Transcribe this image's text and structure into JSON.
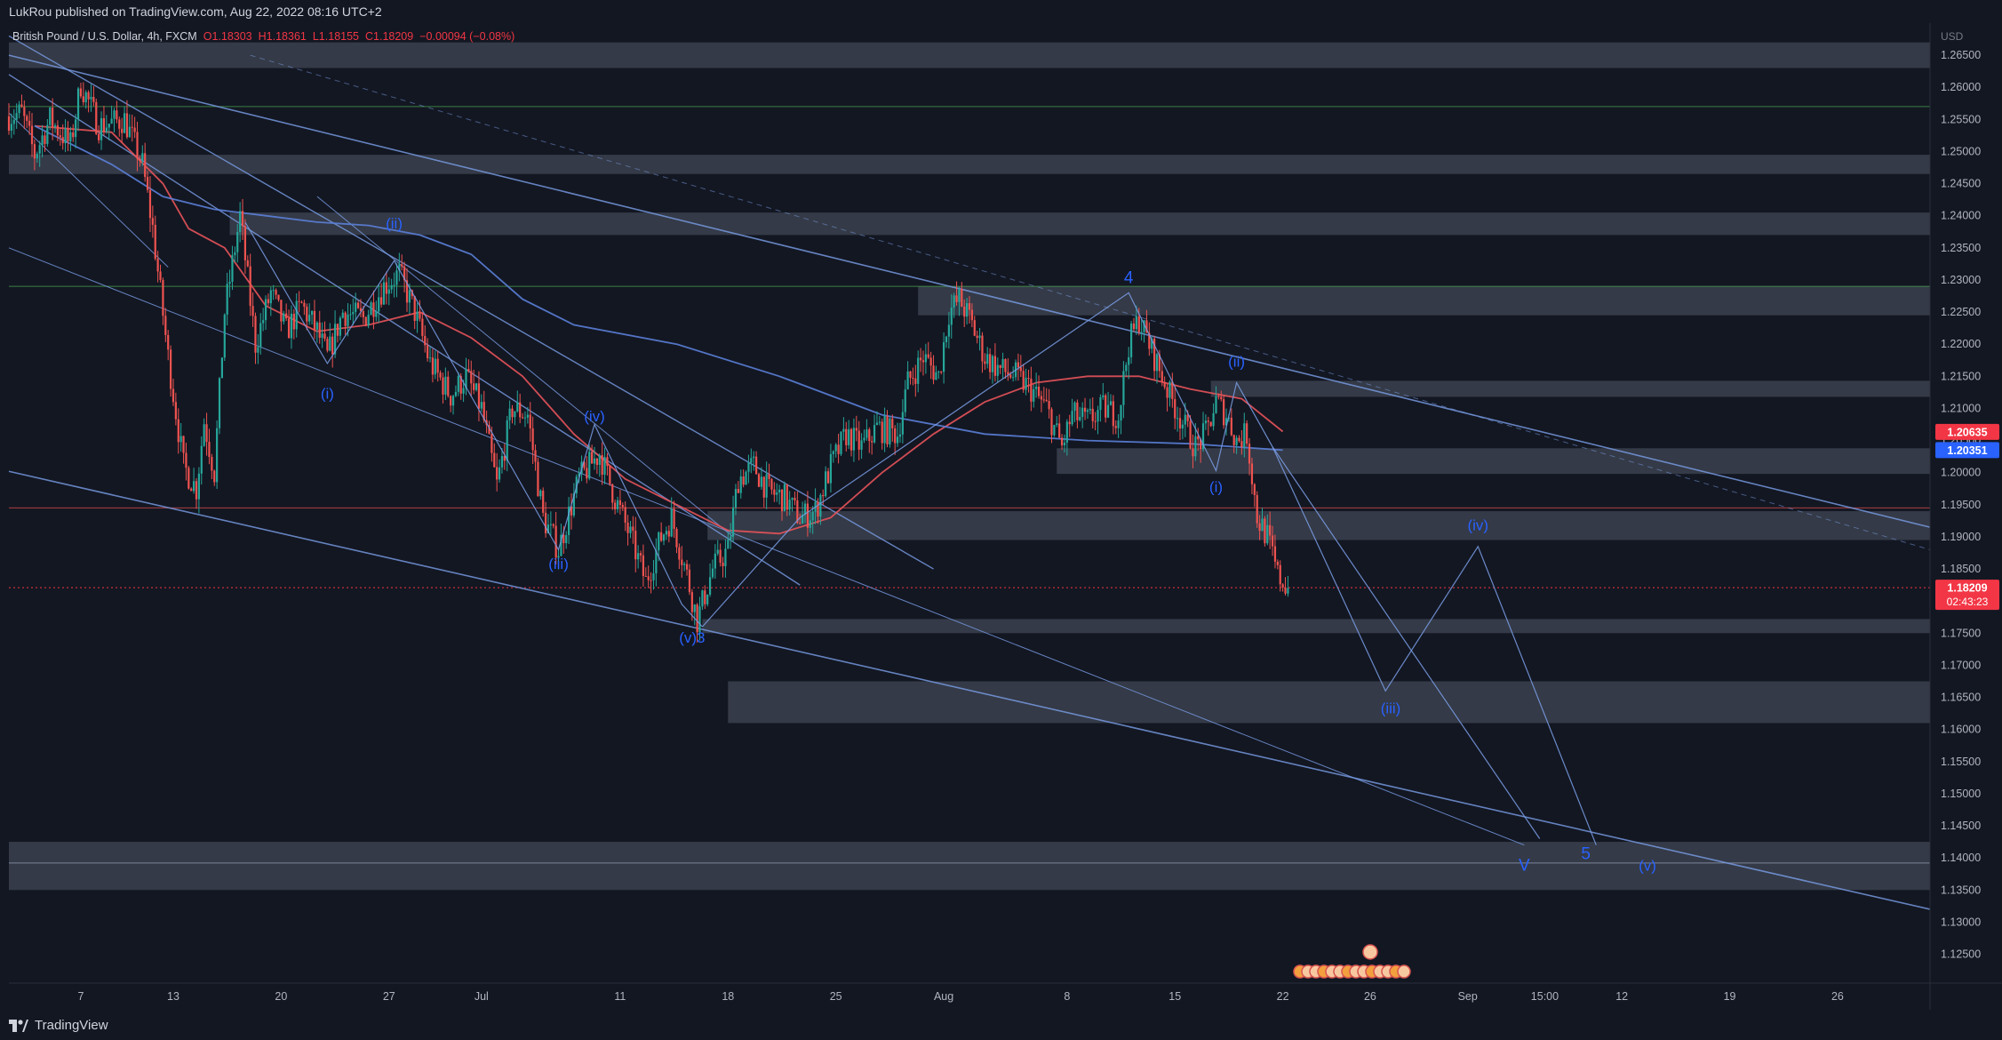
{
  "header": {
    "published_text": "LukRou published on TradingView.com, Aug 22, 2022 08:16 UTC+2"
  },
  "footer": {
    "brand": "TradingView"
  },
  "colors": {
    "bg": "#131722",
    "up": "#26a69a",
    "down": "#ef5350",
    "ma_fast": "#e8535a",
    "ma_slow": "#5b7fd8",
    "trendline": "#7b9fe8",
    "zone": "#dbe6fd",
    "wave_label": "#2962ff",
    "price_tag": "#f23645",
    "ma_tag": "#2962ff"
  },
  "chart_data": {
    "type": "candlestick",
    "title": "British Pound / U.S. Dollar, 4h, FXCM",
    "legend": {
      "symbol": "British Pound / U.S. Dollar, 4h, FXCM",
      "open": "O1.18303",
      "high": "H1.18361",
      "low": "L1.18155",
      "close": "C1.18209",
      "change": "−0.00094 (−0.08%)"
    },
    "currency": "USD",
    "ylim": [
      1.1205,
      1.27
    ],
    "y_ticks": [
      "1.26500",
      "1.26000",
      "1.25500",
      "1.25000",
      "1.24500",
      "1.24000",
      "1.23500",
      "1.23000",
      "1.22500",
      "1.22000",
      "1.21500",
      "1.21000",
      "1.20500",
      "1.20000",
      "1.19500",
      "1.19000",
      "1.18500",
      "1.18000",
      "1.17500",
      "1.17000",
      "1.16500",
      "1.16000",
      "1.15500",
      "1.15000",
      "1.14500",
      "1.14000",
      "1.13500",
      "1.13000",
      "1.12500"
    ],
    "x_ticks": [
      {
        "label": "7",
        "t": 28
      },
      {
        "label": "13",
        "t": 64
      },
      {
        "label": "20",
        "t": 106
      },
      {
        "label": "27",
        "t": 148
      },
      {
        "label": "Jul",
        "t": 184
      },
      {
        "label": "11",
        "t": 238
      },
      {
        "label": "18",
        "t": 280
      },
      {
        "label": "25",
        "t": 322
      },
      {
        "label": "Aug",
        "t": 364
      },
      {
        "label": "8",
        "t": 412
      },
      {
        "label": "15",
        "t": 454
      },
      {
        "label": "22",
        "t": 496
      },
      {
        "label": "26",
        "t": 530
      },
      {
        "label": "Sep",
        "t": 568
      },
      {
        "label": "15:00",
        "t": 598
      },
      {
        "label": "12",
        "t": 628
      },
      {
        "label": "19",
        "t": 670
      },
      {
        "label": "26",
        "t": 712
      }
    ],
    "current_price": {
      "value": 1.18209,
      "label": "1.18209",
      "countdown": "02:43:23"
    },
    "ma_tags": [
      {
        "value": 1.20635,
        "label": "1.20635",
        "color": "#f23645"
      },
      {
        "value": 1.20351,
        "label": "1.20351",
        "color": "#2962ff"
      }
    ],
    "h_lines": [
      {
        "value": 1.257,
        "color": "#4caf50"
      },
      {
        "value": 1.229,
        "color": "#4caf50"
      },
      {
        "value": 1.1945,
        "color": "#ef5350"
      },
      {
        "value": 1.1392,
        "color": "#9aa4c0"
      }
    ],
    "zones": [
      {
        "t0": 0,
        "t1": 748,
        "p0": 1.263,
        "p1": 1.267
      },
      {
        "t0": 0,
        "t1": 748,
        "p0": 1.2465,
        "p1": 1.2495
      },
      {
        "t0": 86,
        "t1": 748,
        "p0": 1.237,
        "p1": 1.2405
      },
      {
        "t0": 354,
        "t1": 748,
        "p0": 1.2245,
        "p1": 1.229
      },
      {
        "t0": 468,
        "t1": 748,
        "p0": 1.2118,
        "p1": 1.2143
      },
      {
        "t0": 408,
        "t1": 748,
        "p0": 1.1998,
        "p1": 1.2038
      },
      {
        "t0": 272,
        "t1": 748,
        "p0": 1.1895,
        "p1": 1.194
      },
      {
        "t0": 270,
        "t1": 748,
        "p0": 1.175,
        "p1": 1.1772
      },
      {
        "t0": 280,
        "t1": 748,
        "p0": 1.161,
        "p1": 1.1675
      },
      {
        "t0": 0,
        "t1": 748,
        "p0": 1.135,
        "p1": 1.1425
      }
    ],
    "ohlc_anchors": [
      [
        0,
        1.2555
      ],
      [
        5,
        1.256
      ],
      [
        10,
        1.2495
      ],
      [
        16,
        1.255
      ],
      [
        24,
        1.251
      ],
      [
        28,
        1.2605
      ],
      [
        35,
        1.254
      ],
      [
        45,
        1.255
      ],
      [
        52,
        1.248
      ],
      [
        56,
        1.238
      ],
      [
        62,
        1.218
      ],
      [
        68,
        1.201
      ],
      [
        73,
        1.1975
      ],
      [
        76,
        1.208
      ],
      [
        80,
        1.2
      ],
      [
        84,
        1.225
      ],
      [
        90,
        1.24
      ],
      [
        96,
        1.22
      ],
      [
        102,
        1.228
      ],
      [
        108,
        1.222
      ],
      [
        114,
        1.226
      ],
      [
        120,
        1.222
      ],
      [
        124,
        1.218
      ],
      [
        130,
        1.225
      ],
      [
        138,
        1.224
      ],
      [
        146,
        1.229
      ],
      [
        152,
        1.231
      ],
      [
        158,
        1.225
      ],
      [
        164,
        1.217
      ],
      [
        172,
        1.212
      ],
      [
        178,
        1.215
      ],
      [
        184,
        1.21
      ],
      [
        190,
        1.198
      ],
      [
        196,
        1.21
      ],
      [
        202,
        1.209
      ],
      [
        208,
        1.193
      ],
      [
        214,
        1.188
      ],
      [
        222,
        1.199
      ],
      [
        230,
        1.203
      ],
      [
        236,
        1.196
      ],
      [
        242,
        1.19
      ],
      [
        248,
        1.183
      ],
      [
        254,
        1.19
      ],
      [
        258,
        1.193
      ],
      [
        264,
        1.184
      ],
      [
        268,
        1.177
      ],
      [
        274,
        1.185
      ],
      [
        280,
        1.188
      ],
      [
        284,
        1.199
      ],
      [
        290,
        1.201
      ],
      [
        296,
        1.197
      ],
      [
        302,
        1.196
      ],
      [
        308,
        1.193
      ],
      [
        314,
        1.194
      ],
      [
        320,
        1.201
      ],
      [
        326,
        1.206
      ],
      [
        332,
        1.204
      ],
      [
        338,
        1.207
      ],
      [
        346,
        1.206
      ],
      [
        350,
        1.214
      ],
      [
        356,
        1.218
      ],
      [
        362,
        1.215
      ],
      [
        366,
        1.225
      ],
      [
        370,
        1.227
      ],
      [
        374,
        1.224
      ],
      [
        380,
        1.218
      ],
      [
        386,
        1.216
      ],
      [
        392,
        1.215
      ],
      [
        398,
        1.213
      ],
      [
        404,
        1.21
      ],
      [
        410,
        1.204
      ],
      [
        414,
        1.209
      ],
      [
        420,
        1.208
      ],
      [
        426,
        1.21
      ],
      [
        432,
        1.209
      ],
      [
        436,
        1.22
      ],
      [
        440,
        1.224
      ],
      [
        446,
        1.218
      ],
      [
        452,
        1.212
      ],
      [
        458,
        1.207
      ],
      [
        462,
        1.204
      ],
      [
        466,
        1.206
      ],
      [
        470,
        1.211
      ],
      [
        474,
        1.209
      ],
      [
        478,
        1.205
      ],
      [
        482,
        1.206
      ],
      [
        486,
        1.193
      ],
      [
        490,
        1.19
      ],
      [
        494,
        1.184
      ],
      [
        498,
        1.1821
      ]
    ],
    "moving_averages": [
      {
        "name": "ma_fast",
        "color": "#e8535a",
        "points": [
          [
            10,
            1.254
          ],
          [
            40,
            1.253
          ],
          [
            60,
            1.245
          ],
          [
            70,
            1.238
          ],
          [
            84,
            1.235
          ],
          [
            100,
            1.226
          ],
          [
            120,
            1.222
          ],
          [
            140,
            1.223
          ],
          [
            160,
            1.225
          ],
          [
            180,
            1.221
          ],
          [
            200,
            1.215
          ],
          [
            220,
            1.206
          ],
          [
            240,
            1.199
          ],
          [
            260,
            1.195
          ],
          [
            280,
            1.191
          ],
          [
            300,
            1.1905
          ],
          [
            320,
            1.193
          ],
          [
            340,
            1.2
          ],
          [
            360,
            1.206
          ],
          [
            380,
            1.211
          ],
          [
            400,
            1.214
          ],
          [
            420,
            1.215
          ],
          [
            440,
            1.215
          ],
          [
            460,
            1.213
          ],
          [
            480,
            1.2115
          ],
          [
            496,
            1.2064
          ]
        ]
      },
      {
        "name": "ma_slow",
        "color": "#5b7fd8",
        "points": [
          [
            10,
            1.254
          ],
          [
            40,
            1.248
          ],
          [
            60,
            1.243
          ],
          [
            80,
            1.241
          ],
          [
            100,
            1.24
          ],
          [
            120,
            1.239
          ],
          [
            140,
            1.2385
          ],
          [
            160,
            1.237
          ],
          [
            180,
            1.234
          ],
          [
            200,
            1.227
          ],
          [
            220,
            1.223
          ],
          [
            260,
            1.22
          ],
          [
            300,
            1.215
          ],
          [
            340,
            1.209
          ],
          [
            380,
            1.206
          ],
          [
            420,
            1.205
          ],
          [
            460,
            1.2045
          ],
          [
            496,
            1.2035
          ]
        ]
      }
    ],
    "trendlines": [
      {
        "p": [
          [
            0,
            1.265
          ],
          [
            748,
            1.1915
          ]
        ],
        "w": 1.6,
        "dash": false
      },
      {
        "p": [
          [
            0,
            1.2002
          ],
          [
            748,
            1.132
          ]
        ],
        "w": 1.6,
        "dash": false
      },
      {
        "p": [
          [
            94,
            1.265
          ],
          [
            748,
            1.188
          ]
        ],
        "w": 1,
        "dash": true
      },
      {
        "p": [
          [
            0,
            1.268
          ],
          [
            360,
            1.185
          ]
        ],
        "w": 1.4,
        "dash": false
      },
      {
        "p": [
          [
            0,
            1.262
          ],
          [
            308,
            1.1825
          ]
        ],
        "w": 1.4,
        "dash": false
      },
      {
        "p": [
          [
            0,
            1.235
          ],
          [
            590,
            1.142
          ]
        ],
        "w": 1,
        "dash": false
      },
      {
        "p": [
          [
            120,
            1.243
          ],
          [
            282,
            1.19
          ]
        ],
        "w": 1,
        "dash": false
      },
      {
        "p": [
          [
            0,
            1.256
          ],
          [
            62,
            1.232
          ]
        ],
        "w": 1,
        "dash": false
      }
    ],
    "zigzags": [
      {
        "p": [
          [
            92,
            1.239
          ],
          [
            124,
            1.217
          ],
          [
            150,
            1.233
          ],
          [
            214,
            1.188
          ],
          [
            228,
            1.2075
          ],
          [
            262,
            1.1795
          ],
          [
            270,
            1.176
          ]
        ]
      },
      {
        "p": [
          [
            270,
            1.176
          ],
          [
            308,
            1.193
          ],
          [
            436,
            1.228
          ],
          [
            470,
            1.2003
          ],
          [
            478,
            1.214
          ],
          [
            492,
            1.204
          ],
          [
            536,
            1.166
          ],
          [
            572,
            1.1885
          ],
          [
            618,
            1.142
          ]
        ]
      },
      {
        "p": [
          [
            492,
            1.204
          ],
          [
            596,
            1.143
          ]
        ]
      }
    ],
    "annotations": [
      {
        "text": "(ii)",
        "t": 150,
        "p": 1.238,
        "size": 17
      },
      {
        "text": "(i)",
        "t": 124,
        "p": 1.2115,
        "size": 17
      },
      {
        "text": "(iv)",
        "t": 228,
        "p": 1.208,
        "size": 17
      },
      {
        "text": "(iii)",
        "t": 214,
        "p": 1.185,
        "size": 17
      },
      {
        "text": "(v)3",
        "t": 266,
        "p": 1.1735,
        "size": 17
      },
      {
        "text": "4",
        "t": 436,
        "p": 1.2295,
        "size": 19
      },
      {
        "text": "(ii)",
        "t": 478,
        "p": 1.2165,
        "size": 17
      },
      {
        "text": "(i)",
        "t": 470,
        "p": 1.197,
        "size": 17
      },
      {
        "text": "(iv)",
        "t": 572,
        "p": 1.191,
        "size": 17
      },
      {
        "text": "(iii)",
        "t": 538,
        "p": 1.1625,
        "size": 17
      },
      {
        "text": "V",
        "t": 590,
        "p": 1.138,
        "size": 19
      },
      {
        "text": "5",
        "t": 614,
        "p": 1.1398,
        "size": 19
      },
      {
        "text": "(v)",
        "t": 638,
        "p": 1.138,
        "size": 17
      }
    ]
  }
}
